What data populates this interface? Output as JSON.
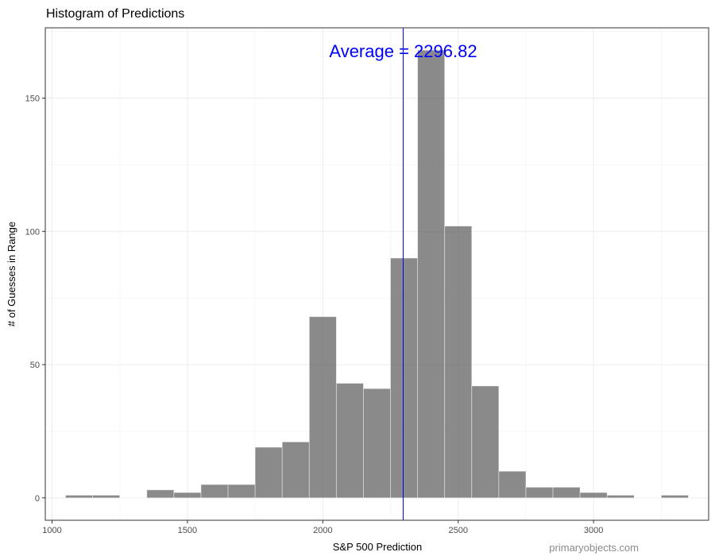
{
  "chart_data": {
    "type": "bar",
    "title": "Histogram of Predictions",
    "xlabel": "S&P 500 Prediction",
    "ylabel": "# of Guesses in Range",
    "bin_width": 100,
    "bins": [
      {
        "start": 1050,
        "end": 1150,
        "count": 1
      },
      {
        "start": 1150,
        "end": 1250,
        "count": 1
      },
      {
        "start": 1250,
        "end": 1350,
        "count": 0
      },
      {
        "start": 1350,
        "end": 1450,
        "count": 3
      },
      {
        "start": 1450,
        "end": 1550,
        "count": 2
      },
      {
        "start": 1550,
        "end": 1650,
        "count": 5
      },
      {
        "start": 1650,
        "end": 1750,
        "count": 5
      },
      {
        "start": 1750,
        "end": 1850,
        "count": 19
      },
      {
        "start": 1850,
        "end": 1950,
        "count": 21
      },
      {
        "start": 1950,
        "end": 2050,
        "count": 68
      },
      {
        "start": 2050,
        "end": 2150,
        "count": 43
      },
      {
        "start": 2150,
        "end": 2250,
        "count": 41
      },
      {
        "start": 2250,
        "end": 2350,
        "count": 90
      },
      {
        "start": 2350,
        "end": 2450,
        "count": 168
      },
      {
        "start": 2450,
        "end": 2550,
        "count": 102
      },
      {
        "start": 2550,
        "end": 2650,
        "count": 42
      },
      {
        "start": 2650,
        "end": 2750,
        "count": 10
      },
      {
        "start": 2750,
        "end": 2850,
        "count": 4
      },
      {
        "start": 2850,
        "end": 2950,
        "count": 4
      },
      {
        "start": 2950,
        "end": 3050,
        "count": 2
      },
      {
        "start": 3050,
        "end": 3150,
        "count": 1
      },
      {
        "start": 3150,
        "end": 3250,
        "count": 0
      },
      {
        "start": 3250,
        "end": 3350,
        "count": 1
      }
    ],
    "xlim": [
      975,
      3425
    ],
    "ylim": [
      -8.4,
      176.4
    ],
    "x_ticks": [
      1000,
      1500,
      2000,
      2500,
      3000
    ],
    "y_ticks": [
      0,
      50,
      100,
      150
    ],
    "average": 2296.82,
    "annotation": "Average = 2296.82",
    "grid": true,
    "bar_color": "#595959",
    "average_line_color": "#0000ff",
    "annotation_color": "#0000ff"
  },
  "watermark": "primaryobjects.com"
}
